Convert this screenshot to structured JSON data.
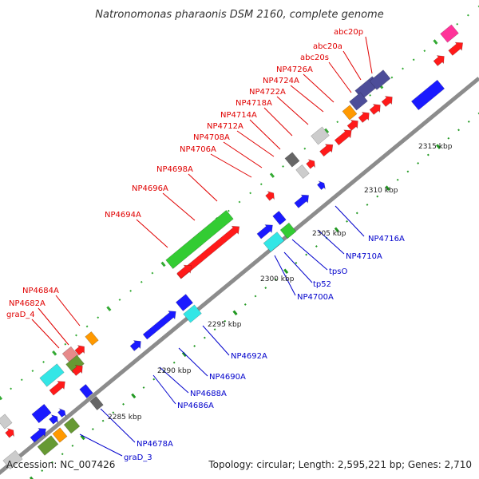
{
  "title": "Natronomonas pharaonis DSM 2160, complete genome",
  "footer": {
    "accession": "Accession: NC_007426",
    "summary": "Topology: circular; Length: 2,595,221 bp; Genes: 2,710"
  },
  "colors": {
    "backbone": "#8c8c8c",
    "upper_label": "#e00000",
    "lower_label": "#0000cc",
    "red": "#ff1a1a",
    "blue": "#1a1aff",
    "green": "#33cc33",
    "cyan": "#33e6e6",
    "navy": "#4d4d99",
    "orange": "#ff9900",
    "magenta": "#ff3399",
    "olive": "#669933",
    "pink": "#e68a8a",
    "gray": "#cccccc",
    "darkgray": "#666666",
    "dot_upper": "#33aa33",
    "dot_lower": "#229922"
  },
  "scale_ticks": [
    "2285 kbp",
    "2290 kbp",
    "2295 kbp",
    "2300 kbp",
    "2305 kbp",
    "2310 kbp",
    "2315 kbp"
  ],
  "upper_gene_labels": [
    "abc20p",
    "abc20a",
    "abc20s",
    "NP4726A",
    "NP4724A",
    "NP4722A",
    "NP4718A",
    "NP4714A",
    "NP4712A",
    "NP4708A",
    "NP4706A",
    "NP4698A",
    "NP4696A",
    "NP4694A",
    "NP4684A",
    "NP4682A",
    "graD_4"
  ],
  "lower_gene_labels": [
    "NP4716A",
    "NP4710A",
    "tpsO",
    "tp52",
    "NP4700A",
    "NP4692A",
    "NP4690A",
    "NP4688A",
    "NP4686A",
    "NP4678A",
    "graD_3"
  ]
}
